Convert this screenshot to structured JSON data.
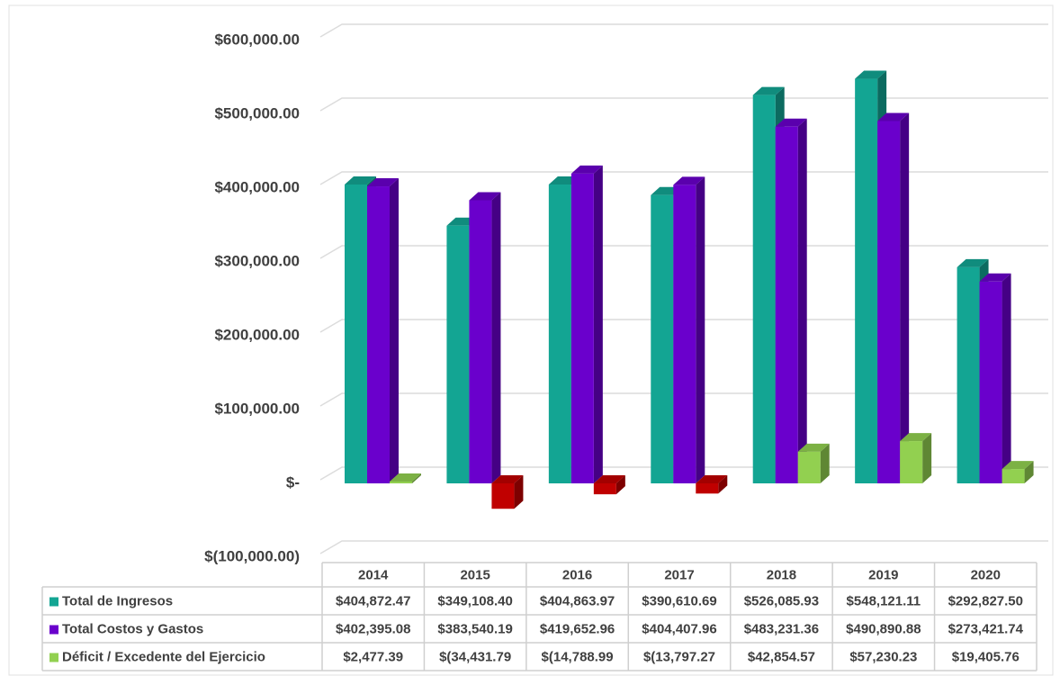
{
  "chart_data": {
    "type": "bar3d",
    "categories": [
      "2014",
      "2015",
      "2016",
      "2017",
      "2018",
      "2019",
      "2020"
    ],
    "series": [
      {
        "name": "Total de Ingresos",
        "color": "#13a593",
        "values": [
          404872.47,
          349108.4,
          404863.97,
          390610.69,
          526085.93,
          548121.11,
          292827.5
        ],
        "value_labels": [
          "$404,872.47",
          "$349,108.40",
          "$404,863.97",
          "$390,610.69",
          "$526,085.93",
          "$548,121.11",
          "$292,827.50"
        ]
      },
      {
        "name": "Total Costos y Gastos",
        "color": "#6a00cc",
        "values": [
          402395.08,
          383540.19,
          419652.96,
          404407.96,
          483231.36,
          490890.88,
          273421.74
        ],
        "value_labels": [
          "$402,395.08",
          "$383,540.19",
          "$419,652.96",
          "$404,407.96",
          "$483,231.36",
          "$490,890.88",
          "$273,421.74"
        ]
      },
      {
        "name": "Déficit / Excedente del Ejercicio",
        "color": "#92d050",
        "negative_color": "#c00000",
        "values": [
          2477.39,
          -34431.79,
          -14788.99,
          -13797.27,
          42854.57,
          57230.23,
          19405.76
        ],
        "value_labels": [
          "$2,477.39",
          "$(34,431.79",
          "$(14,788.99",
          "$(13,797.27",
          "$42,854.57",
          "$57,230.23",
          "$19,405.76"
        ]
      }
    ],
    "ylim": [
      -100000,
      600000
    ],
    "yticks": [
      {
        "value": -100000,
        "label": "$(100,000.00)"
      },
      {
        "value": 0,
        "label": "$-"
      },
      {
        "value": 100000,
        "label": "$100,000.00"
      },
      {
        "value": 200000,
        "label": "$200,000.00"
      },
      {
        "value": 300000,
        "label": "$300,000.00"
      },
      {
        "value": 400000,
        "label": "$400,000.00"
      },
      {
        "value": 500000,
        "label": "$500,000.00"
      },
      {
        "value": 600000,
        "label": "$600,000.00"
      }
    ],
    "grid": true,
    "data_table": true
  }
}
